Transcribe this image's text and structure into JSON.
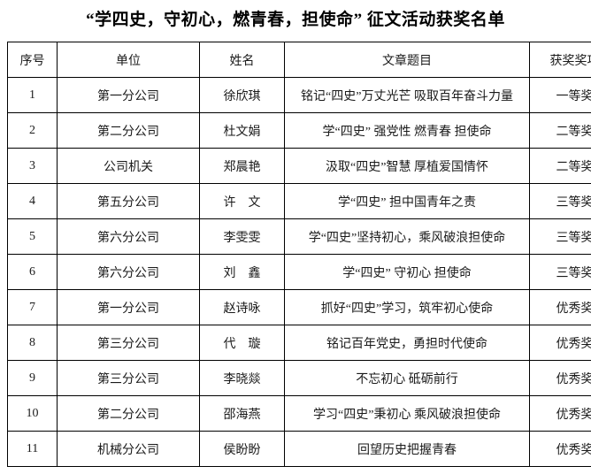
{
  "doc": {
    "title": "“学四史，守初心，燃青春，担使命” 征文活动获奖名单"
  },
  "colors": {
    "background": "#ffffff",
    "border": "#000000",
    "text": "#1a1a1a"
  },
  "table": {
    "columns": [
      {
        "key": "no",
        "label": "序号"
      },
      {
        "key": "unit",
        "label": "单位"
      },
      {
        "key": "name",
        "label": "姓名"
      },
      {
        "key": "title",
        "label": "文章题目"
      },
      {
        "key": "award",
        "label": "获奖奖项"
      }
    ],
    "rows": [
      {
        "no": "1",
        "unit": "第一分公司",
        "name": "徐欣琪",
        "title": "铭记“四史”万丈光芒 吸取百年奋斗力量",
        "award": "一等奖"
      },
      {
        "no": "2",
        "unit": "第二分公司",
        "name": "杜文娟",
        "title": "学“四史” 强党性 燃青春 担使命",
        "award": "二等奖"
      },
      {
        "no": "3",
        "unit": "公司机关",
        "name": "郑晨艳",
        "title": "汲取“四史”智慧 厚植爱国情怀",
        "award": "二等奖"
      },
      {
        "no": "4",
        "unit": "第五分公司",
        "name": "许　文",
        "title": "学“四史” 担中国青年之责",
        "award": "三等奖"
      },
      {
        "no": "5",
        "unit": "第六分公司",
        "name": "李雯雯",
        "title": "学“四史”坚持初心，乘风破浪担使命",
        "award": "三等奖"
      },
      {
        "no": "6",
        "unit": "第六分公司",
        "name": "刘　鑫",
        "title": "学“四史” 守初心 担使命",
        "award": "三等奖"
      },
      {
        "no": "7",
        "unit": "第一分公司",
        "name": "赵诗咏",
        "title": "抓好“四史”学习，筑牢初心使命",
        "award": "优秀奖"
      },
      {
        "no": "8",
        "unit": "第三分公司",
        "name": "代　璇",
        "title": "铭记百年党史，勇担时代使命",
        "award": "优秀奖"
      },
      {
        "no": "9",
        "unit": "第三分公司",
        "name": "李晓燚",
        "title": "不忘初心 砥砺前行",
        "award": "优秀奖"
      },
      {
        "no": "10",
        "unit": "第二分公司",
        "name": "邵海燕",
        "title": "学习“四史”秉初心 乘风破浪担使命",
        "award": "优秀奖"
      },
      {
        "no": "11",
        "unit": "机械分公司",
        "name": "侯盼盼",
        "title": "回望历史把握青春",
        "award": "优秀奖"
      }
    ]
  }
}
